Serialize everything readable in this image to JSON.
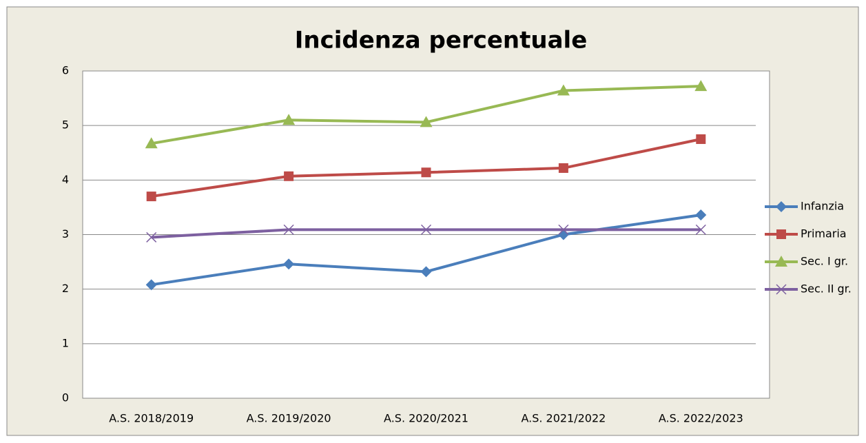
{
  "chart_data": {
    "type": "line",
    "title": "Incidenza percentuale",
    "categories": [
      "A.S. 2018/2019",
      "A.S. 2019/2020",
      "A.S. 2020/2021",
      "A.S. 2021/2022",
      "A.S. 2022/2023"
    ],
    "series": [
      {
        "name": "Infanzia",
        "color": "#4a7ebb",
        "marker": "diamond",
        "values": [
          2.08,
          2.46,
          2.32,
          3.0,
          3.36
        ]
      },
      {
        "name": "Primaria",
        "color": "#be4b48",
        "marker": "square",
        "values": [
          3.7,
          4.07,
          4.14,
          4.22,
          4.75
        ]
      },
      {
        "name": "Sec. I gr.",
        "color": "#98b954",
        "marker": "triangle",
        "values": [
          4.67,
          5.1,
          5.06,
          5.64,
          5.72
        ]
      },
      {
        "name": "Sec. II gr.",
        "color": "#7d60a0",
        "marker": "x",
        "values": [
          2.95,
          3.09,
          3.09,
          3.09,
          3.09
        ]
      }
    ],
    "ylim": [
      0,
      6
    ],
    "yticks": [
      0,
      1,
      2,
      3,
      4,
      5,
      6
    ],
    "grid": true,
    "legend": "right"
  }
}
